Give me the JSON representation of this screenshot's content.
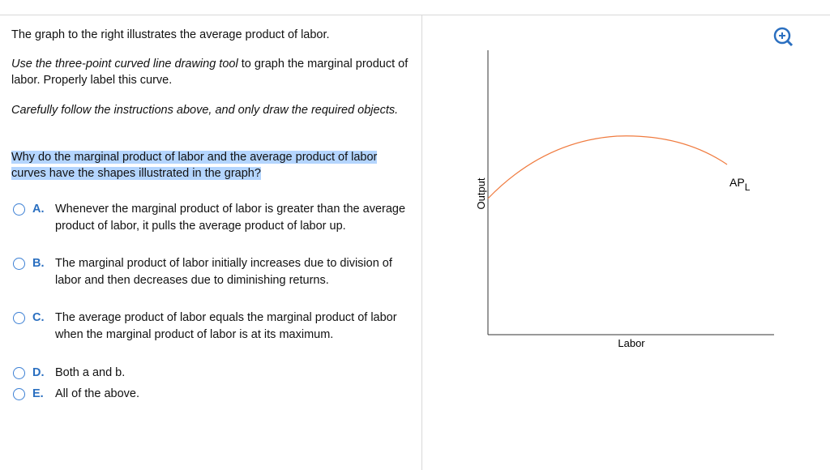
{
  "intro": "The graph to the right illustrates the average product of labor.",
  "instruction": {
    "italic": "Use the three-point curved line drawing tool",
    "rest": " to graph the marginal product of labor. Properly label this curve."
  },
  "caution": "Carefully follow the instructions above, and only draw the required objects.",
  "question": "Why do the marginal product of labor and the average product of labor curves have the shapes illustrated in the graph?",
  "options": [
    {
      "letter": "A.",
      "text": "Whenever the marginal product of labor is greater than the average product of labor, it pulls the average product of labor up."
    },
    {
      "letter": "B.",
      "text": "The marginal product of labor initially increases due to division of labor and then decreases due to diminishing returns."
    },
    {
      "letter": "C.",
      "text": "The average product of labor equals the marginal product of labor when the marginal product of labor is at its maximum."
    },
    {
      "letter": "D.",
      "text": "Both a and b."
    },
    {
      "letter": "E.",
      "text": "All of the above."
    }
  ],
  "graph": {
    "y_label": "Output",
    "x_label": "Labor",
    "curve_label": {
      "main": "AP",
      "sub": "L"
    }
  }
}
